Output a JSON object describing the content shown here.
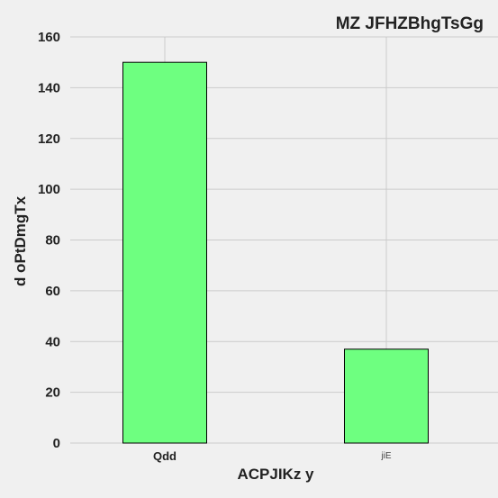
{
  "chart_data": {
    "type": "bar",
    "title": "MZ JFHZBhgTsGg",
    "xlabel": "ACPJIKz  y",
    "ylabel": "d  oPtDmgTx",
    "categories": [
      "Qdd",
      "jiE"
    ],
    "values": [
      150,
      37
    ],
    "ylim": [
      0,
      160
    ],
    "yticks": [
      0,
      20,
      40,
      60,
      80,
      100,
      120,
      140,
      160
    ],
    "bar_color": "#6eff80",
    "grid": true
  }
}
